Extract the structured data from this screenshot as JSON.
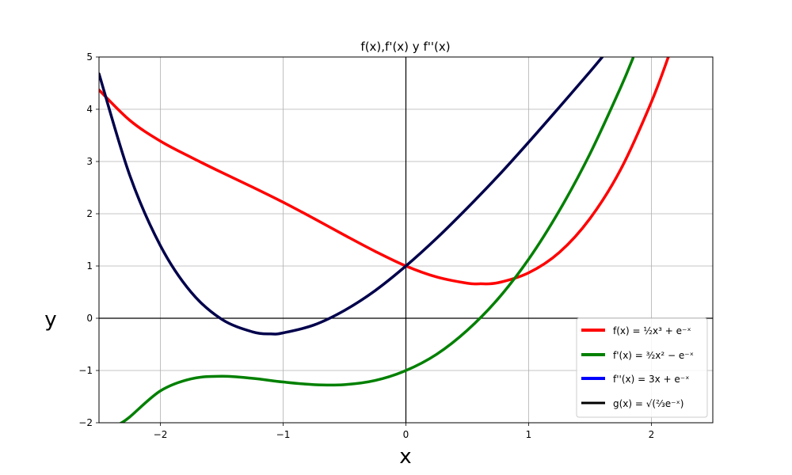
{
  "chart_data": {
    "type": "line",
    "title": "f(x),f'(x) y f''(x)",
    "xlabel": "x",
    "ylabel": "y",
    "xlim": [
      -2.5,
      2.5
    ],
    "ylim": [
      -2,
      5
    ],
    "grid": true,
    "legend_position": "bottom-right",
    "x_ticks": [
      -2,
      -1,
      0,
      1,
      2
    ],
    "x_tick_labels": [
      "−2",
      "−1",
      "0",
      "1",
      "2"
    ],
    "y_ticks": [
      -2,
      -1,
      0,
      1,
      2,
      3,
      4,
      5
    ],
    "y_tick_labels": [
      "−2",
      "−1",
      "0",
      "1",
      "2",
      "3",
      "4",
      "5"
    ],
    "series": [
      {
        "name": "f(x) = ½x³ + e⁻ˣ",
        "color": "#ff0000",
        "x": [
          -2.5,
          -2.25,
          -2.0,
          -1.75,
          -1.5,
          -1.25,
          -1.0,
          -0.75,
          -0.5,
          -0.25,
          0.0,
          0.25,
          0.5,
          0.6,
          0.75,
          1.0,
          1.25,
          1.5,
          1.75,
          2.0,
          2.15
        ],
        "y": [
          4.37,
          3.79,
          3.39,
          3.08,
          2.79,
          2.51,
          2.22,
          1.91,
          1.59,
          1.28,
          1.0,
          0.79,
          0.67,
          0.66,
          0.68,
          0.87,
          1.26,
          1.91,
          2.85,
          4.14,
          5.08
        ]
      },
      {
        "name": "f'(x) = ³⁄₂x² − e⁻ˣ",
        "color": "#008000",
        "x": [
          -2.33,
          -2.25,
          -2.0,
          -1.75,
          -1.5,
          -1.25,
          -1.0,
          -0.75,
          -0.5,
          -0.25,
          0.0,
          0.25,
          0.5,
          0.75,
          1.0,
          1.25,
          1.5,
          1.75,
          1.85
        ],
        "y": [
          -2.02,
          -1.89,
          -1.39,
          -1.16,
          -1.11,
          -1.15,
          -1.22,
          -1.27,
          -1.27,
          -1.19,
          -1.0,
          -0.69,
          -0.23,
          0.37,
          1.13,
          2.06,
          3.15,
          4.42,
          4.98
        ]
      },
      {
        "name": "f''(x) = 3x + e⁻ˣ",
        "color": "#0000ff",
        "x": [],
        "y": []
      },
      {
        "name": "g(x) = √(⅔e⁻ˣ)",
        "color": "#000000",
        "x": [],
        "y": []
      },
      {
        "name": "",
        "color": "#00004c",
        "x": [
          -2.5,
          -2.25,
          -2.0,
          -1.75,
          -1.5,
          -1.25,
          -1.1,
          -1.0,
          -0.75,
          -0.5,
          -0.25,
          0.0,
          0.25,
          0.5,
          0.75,
          1.0,
          1.25,
          1.5,
          1.6
        ],
        "y": [
          4.68,
          2.74,
          1.39,
          0.5,
          -0.02,
          -0.26,
          -0.3,
          -0.28,
          -0.13,
          0.15,
          0.53,
          1.0,
          1.53,
          2.11,
          2.72,
          3.37,
          4.04,
          4.72,
          5.0
        ]
      }
    ]
  }
}
